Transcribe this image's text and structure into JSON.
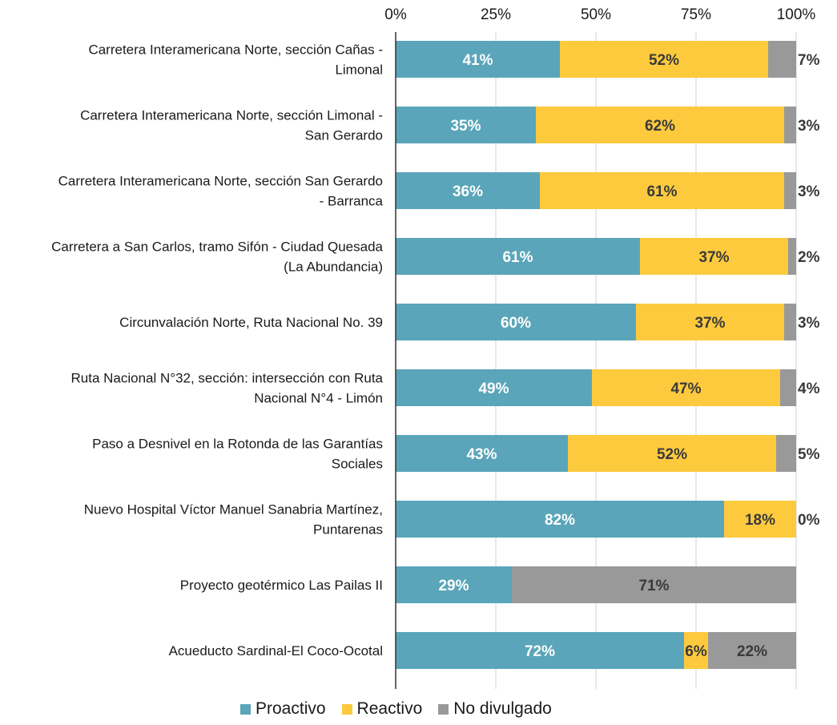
{
  "chart_data": {
    "type": "bar",
    "orientation": "horizontal",
    "stacked": true,
    "xlim": [
      0,
      100
    ],
    "x_ticks": [
      "0%",
      "25%",
      "50%",
      "75%",
      "100%"
    ],
    "x_axis_position": "top",
    "grid": true,
    "legend_position": "bottom",
    "categories": [
      [
        "Carretera Interamericana Norte, sección Cañas -",
        "Limonal"
      ],
      [
        "Carretera Interamericana Norte, sección Limonal -",
        "San Gerardo"
      ],
      [
        "Carretera Interamericana Norte, sección San Gerardo",
        "- Barranca"
      ],
      [
        "Carretera a San Carlos, tramo Sifón - Ciudad Quesada",
        "(La Abundancia)"
      ],
      [
        "Circunvalación Norte, Ruta Nacional No. 39"
      ],
      [
        "Ruta Nacional N°32, sección: intersección con  Ruta",
        "Nacional N°4 - Limón"
      ],
      [
        "Paso a Desnivel en la Rotonda de las Garantías",
        "Sociales"
      ],
      [
        "Nuevo Hospital Víctor Manuel Sanabria Martínez,",
        "Puntarenas"
      ],
      [
        "Proyecto geotérmico Las Pailas II"
      ],
      [
        "Acueducto Sardinal-El Coco-Ocotal"
      ]
    ],
    "series": [
      {
        "name": "Proactivo",
        "color": "#5aa5b9",
        "label_color": "#ffffff",
        "values": [
          41,
          35,
          36,
          61,
          60,
          49,
          43,
          82,
          29,
          72
        ]
      },
      {
        "name": "Reactivo",
        "color": "#fdca3e",
        "label_color": "#3a3a3a",
        "values": [
          52,
          62,
          61,
          37,
          37,
          47,
          52,
          18,
          0,
          6
        ]
      },
      {
        "name": "No divulgado",
        "color": "#999999",
        "label_color": "#3a3a3a",
        "values": [
          7,
          3,
          3,
          2,
          3,
          4,
          5,
          0,
          71,
          22
        ]
      }
    ],
    "labels": [
      [
        "41%",
        "52%",
        "7%"
      ],
      [
        "35%",
        "62%",
        "3%"
      ],
      [
        "36%",
        "61%",
        "3%"
      ],
      [
        "61%",
        "37%",
        "2%"
      ],
      [
        "60%",
        "37%",
        "3%"
      ],
      [
        "49%",
        "47%",
        "4%"
      ],
      [
        "43%",
        "52%",
        "5%"
      ],
      [
        "82%",
        "18%",
        "0%"
      ],
      [
        "29%",
        "",
        "71%"
      ],
      [
        "72%",
        "6%",
        "22%"
      ]
    ]
  }
}
